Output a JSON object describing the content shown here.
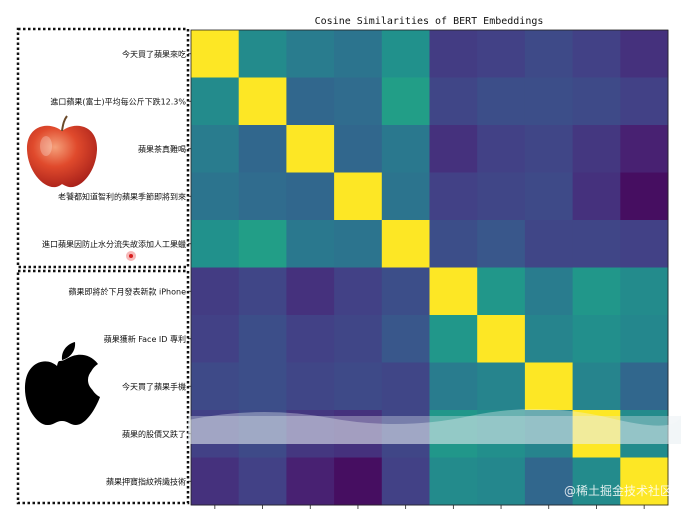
{
  "chart_data": {
    "type": "heatmap",
    "title": "Cosine Similarities of BERT Embeddings",
    "row_labels": [
      "今天買了蘋果來吃",
      "進口蘋果(富士)平均每公斤下跌12.3%",
      "蘋果茶真難喝",
      "老饕都知道智利的蘋果季節即將到來",
      "進口蘋果因防止水分流失故添加人工果蠟",
      "蘋果即將於下月發表新款 iPhone",
      "蘋果獲新 Face ID 專利",
      "今天買了蘋果手機",
      "蘋果的股價又跌了",
      "蘋果押寶指紋辨識技術"
    ],
    "colormap": "viridis",
    "matrix": [
      [
        1.0,
        0.6,
        0.52,
        0.48,
        0.63,
        0.22,
        0.24,
        0.28,
        0.24,
        0.18
      ],
      [
        0.6,
        1.0,
        0.42,
        0.44,
        0.7,
        0.26,
        0.3,
        0.3,
        0.28,
        0.24
      ],
      [
        0.52,
        0.42,
        1.0,
        0.42,
        0.5,
        0.18,
        0.24,
        0.26,
        0.2,
        0.12
      ],
      [
        0.48,
        0.44,
        0.42,
        1.0,
        0.48,
        0.24,
        0.26,
        0.28,
        0.18,
        0.05
      ],
      [
        0.63,
        0.7,
        0.5,
        0.48,
        1.0,
        0.3,
        0.34,
        0.26,
        0.26,
        0.24
      ],
      [
        0.22,
        0.26,
        0.18,
        0.24,
        0.3,
        1.0,
        0.66,
        0.52,
        0.66,
        0.6
      ],
      [
        0.24,
        0.3,
        0.24,
        0.26,
        0.34,
        0.66,
        1.0,
        0.56,
        0.62,
        0.58
      ],
      [
        0.28,
        0.3,
        0.26,
        0.28,
        0.26,
        0.52,
        0.56,
        1.0,
        0.56,
        0.42
      ],
      [
        0.24,
        0.28,
        0.2,
        0.18,
        0.26,
        0.66,
        0.62,
        0.56,
        1.0,
        0.6
      ],
      [
        0.18,
        0.24,
        0.12,
        0.05,
        0.24,
        0.6,
        0.58,
        0.42,
        0.6,
        1.0
      ]
    ]
  },
  "left_panel": {
    "fruit_group_icon": "red-apple-icon",
    "tech_group_icon": "apple-logo-icon"
  },
  "watermark": "@稀土掘金技术社区"
}
